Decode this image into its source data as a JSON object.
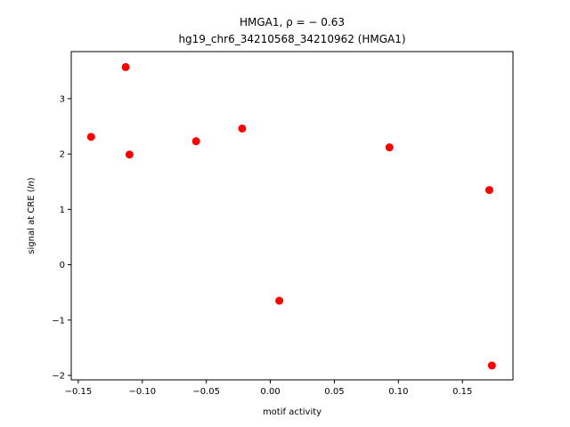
{
  "chart_data": {
    "type": "scatter",
    "title_line1": "HMGA1, ρ = − 0.63",
    "title_line2": "hg19_chr6_34210568_34210962 (HMGA1)",
    "xlabel": "motif activity",
    "ylabel_prefix": "signal at CRE (",
    "ylabel_italic": "ln",
    "ylabel_suffix": ")",
    "xlim": [
      -0.1555,
      0.1895
    ],
    "ylim": [
      -2.08,
      3.85
    ],
    "x_ticks": [
      -0.15,
      -0.1,
      -0.05,
      0.0,
      0.05,
      0.1,
      0.15
    ],
    "x_tick_labels": [
      "−0.15",
      "−0.10",
      "−0.05",
      "0.00",
      "0.05",
      "0.10",
      "0.15"
    ],
    "y_ticks": [
      -2,
      -1,
      0,
      1,
      2,
      3
    ],
    "y_tick_labels": [
      "−2",
      "−1",
      "0",
      "1",
      "2",
      "3"
    ],
    "marker_color": "#ff0000",
    "grid": false,
    "points": [
      {
        "x": -0.14,
        "y": 2.31
      },
      {
        "x": -0.113,
        "y": 3.57
      },
      {
        "x": -0.11,
        "y": 1.99
      },
      {
        "x": -0.058,
        "y": 2.23
      },
      {
        "x": -0.022,
        "y": 2.46
      },
      {
        "x": 0.007,
        "y": -0.65
      },
      {
        "x": 0.093,
        "y": 2.12
      },
      {
        "x": 0.171,
        "y": 1.35
      },
      {
        "x": 0.173,
        "y": -1.82
      }
    ]
  }
}
